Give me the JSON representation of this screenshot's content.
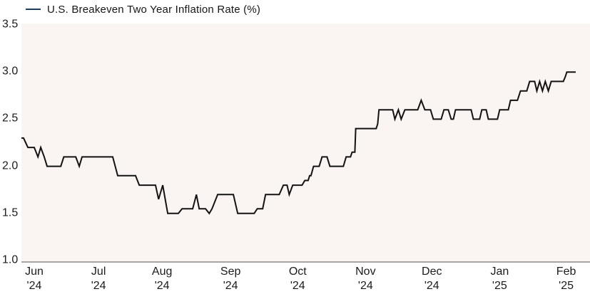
{
  "legend": {
    "label": "U.S. Breakeven Two Year Inflation Rate (%)"
  },
  "colors": {
    "line": "#131313",
    "legend_marker": "#1f3c61",
    "plot_background": "#faf4f2",
    "axis_line": "#a8a5a2",
    "text": "#1b1b1b"
  },
  "chart_data": {
    "type": "line",
    "title": "U.S. Breakeven Two Year Inflation Rate (%)",
    "ylabel": "",
    "xlabel": "",
    "ylim": [
      1.0,
      3.5
    ],
    "grid": false,
    "legend_position": "top-left",
    "yticks": [
      {
        "value": 3.5,
        "label": "3.5"
      },
      {
        "value": 3.0,
        "label": "3.0"
      },
      {
        "value": 2.5,
        "label": "2.5"
      },
      {
        "value": 2.0,
        "label": "2.0"
      },
      {
        "value": 1.5,
        "label": "1.5"
      },
      {
        "value": 1.0,
        "label": "1.0"
      }
    ],
    "x_domain_days": 255,
    "x_ticks": [
      {
        "day": 5.9,
        "line1": "Jun",
        "line2": "'24"
      },
      {
        "day": 35.5,
        "line1": "Jul",
        "line2": "'24"
      },
      {
        "day": 64.7,
        "line1": "Aug",
        "line2": "'24"
      },
      {
        "day": 96.2,
        "line1": "Sep",
        "line2": "'24"
      },
      {
        "day": 127.1,
        "line1": "Oct",
        "line2": "'24"
      },
      {
        "day": 158.3,
        "line1": "Nov",
        "line2": "'24"
      },
      {
        "day": 188.8,
        "line1": "Dec",
        "line2": "'24"
      },
      {
        "day": 220.0,
        "line1": "Jan",
        "line2": "'25"
      },
      {
        "day": 250.6,
        "line1": "Feb",
        "line2": "'25"
      }
    ],
    "series": [
      {
        "name": "U.S. Breakeven Two Year Inflation Rate (%)",
        "points": [
          [
            0,
            2.3
          ],
          [
            1,
            2.3
          ],
          [
            3,
            2.2
          ],
          [
            5.9,
            2.2
          ],
          [
            7.6,
            2.1
          ],
          [
            8.9,
            2.2
          ],
          [
            10.5,
            2.1
          ],
          [
            11.8,
            2.0
          ],
          [
            18.1,
            2.0
          ],
          [
            19.5,
            2.1
          ],
          [
            25,
            2.1
          ],
          [
            26.6,
            2.0
          ],
          [
            27.9,
            2.1
          ],
          [
            42,
            2.1
          ],
          [
            44.3,
            1.9
          ],
          [
            52.5,
            1.9
          ],
          [
            54.2,
            1.8
          ],
          [
            61.7,
            1.8
          ],
          [
            63.1,
            1.65
          ],
          [
            65,
            1.8
          ],
          [
            67.3,
            1.5
          ],
          [
            72.2,
            1.5
          ],
          [
            73.9,
            1.55
          ],
          [
            78.8,
            1.55
          ],
          [
            80.5,
            1.7
          ],
          [
            81.8,
            1.55
          ],
          [
            84.7,
            1.55
          ],
          [
            86.4,
            1.5
          ],
          [
            87.7,
            1.55
          ],
          [
            90.3,
            1.7
          ],
          [
            97.5,
            1.7
          ],
          [
            99.5,
            1.5
          ],
          [
            107.1,
            1.5
          ],
          [
            108.5,
            1.55
          ],
          [
            111,
            1.55
          ],
          [
            112.3,
            1.7
          ],
          [
            118.6,
            1.7
          ],
          [
            120.5,
            1.8
          ],
          [
            122.2,
            1.8
          ],
          [
            123.2,
            1.7
          ],
          [
            124.8,
            1.8
          ],
          [
            129.1,
            1.8
          ],
          [
            130.4,
            1.85
          ],
          [
            131.9,
            1.85
          ],
          [
            132.6,
            1.9
          ],
          [
            133.2,
            1.9
          ],
          [
            134.4,
            2.0
          ],
          [
            137,
            2.0
          ],
          [
            138.3,
            2.1
          ],
          [
            140.6,
            2.1
          ],
          [
            141.9,
            2.0
          ],
          [
            148.1,
            2.0
          ],
          [
            149.4,
            2.1
          ],
          [
            151.4,
            2.1
          ],
          [
            152.1,
            2.15
          ],
          [
            153.4,
            2.15
          ],
          [
            153.8,
            2.4
          ],
          [
            163.2,
            2.4
          ],
          [
            163.9,
            2.45
          ],
          [
            164.5,
            2.6
          ],
          [
            170.8,
            2.6
          ],
          [
            171.8,
            2.5
          ],
          [
            173.4,
            2.6
          ],
          [
            174.7,
            2.5
          ],
          [
            176.4,
            2.6
          ],
          [
            182.3,
            2.6
          ],
          [
            183.9,
            2.7
          ],
          [
            185.6,
            2.6
          ],
          [
            188.2,
            2.6
          ],
          [
            189.5,
            2.5
          ],
          [
            193.1,
            2.5
          ],
          [
            194.4,
            2.6
          ],
          [
            196.4,
            2.6
          ],
          [
            197.7,
            2.5
          ],
          [
            198.7,
            2.5
          ],
          [
            199.7,
            2.6
          ],
          [
            206.9,
            2.6
          ],
          [
            207.9,
            2.5
          ],
          [
            210.8,
            2.5
          ],
          [
            211.8,
            2.6
          ],
          [
            213.8,
            2.6
          ],
          [
            214.8,
            2.5
          ],
          [
            219,
            2.5
          ],
          [
            220,
            2.6
          ],
          [
            224,
            2.6
          ],
          [
            225,
            2.7
          ],
          [
            228.2,
            2.7
          ],
          [
            229.6,
            2.8
          ],
          [
            232.5,
            2.8
          ],
          [
            233.8,
            2.9
          ],
          [
            236.1,
            2.9
          ],
          [
            237.1,
            2.8
          ],
          [
            238.4,
            2.9
          ],
          [
            239.7,
            2.8
          ],
          [
            241,
            2.9
          ],
          [
            242.4,
            2.8
          ],
          [
            243.7,
            2.9
          ],
          [
            249.3,
            2.9
          ],
          [
            250.2,
            2.95
          ],
          [
            250.9,
            3.0
          ],
          [
            255,
            3.0
          ]
        ]
      }
    ]
  }
}
